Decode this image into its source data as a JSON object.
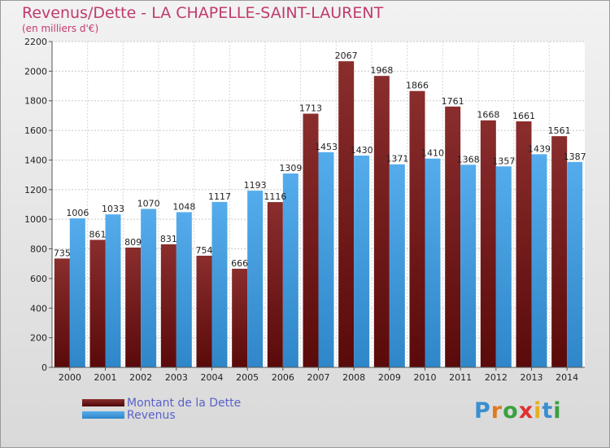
{
  "title": "Revenus/Dette - LA CHAPELLE-SAINT-LAURENT",
  "subtitle": "(en milliers d'€)",
  "colors": {
    "debt": "#7a1f1f",
    "revenue": "#4aa0e0",
    "title": "#c03a6e",
    "legend_text": "#5a62c8"
  },
  "legend": {
    "debt_label": "Montant de la Dette",
    "revenue_label": "Revenus"
  },
  "logo": {
    "letters": [
      "P",
      "r",
      "o",
      "x",
      "i",
      "t",
      "i"
    ],
    "colors": [
      "#3a8fd0",
      "#e07a20",
      "#3aa040",
      "#e03030",
      "#e8b020",
      "#3a8fd0",
      "#3aa040"
    ]
  },
  "chart_data": {
    "type": "bar",
    "categories": [
      "2000",
      "2001",
      "2002",
      "2003",
      "2004",
      "2005",
      "2006",
      "2007",
      "2008",
      "2009",
      "2010",
      "2011",
      "2012",
      "2013",
      "2014"
    ],
    "series": [
      {
        "name": "Montant de la Dette",
        "values": [
          735,
          861,
          809,
          831,
          754,
          666,
          1116,
          1713,
          2067,
          1968,
          1866,
          1761,
          1668,
          1661,
          1561
        ]
      },
      {
        "name": "Revenus",
        "values": [
          1006,
          1033,
          1070,
          1048,
          1117,
          1193,
          1309,
          1453,
          1430,
          1371,
          1410,
          1368,
          1357,
          1439,
          1387
        ]
      }
    ],
    "ylim": [
      0,
      2200
    ],
    "yticks": [
      0,
      200,
      400,
      600,
      800,
      1000,
      1200,
      1400,
      1600,
      1800,
      2000,
      2200
    ],
    "grid": true
  }
}
